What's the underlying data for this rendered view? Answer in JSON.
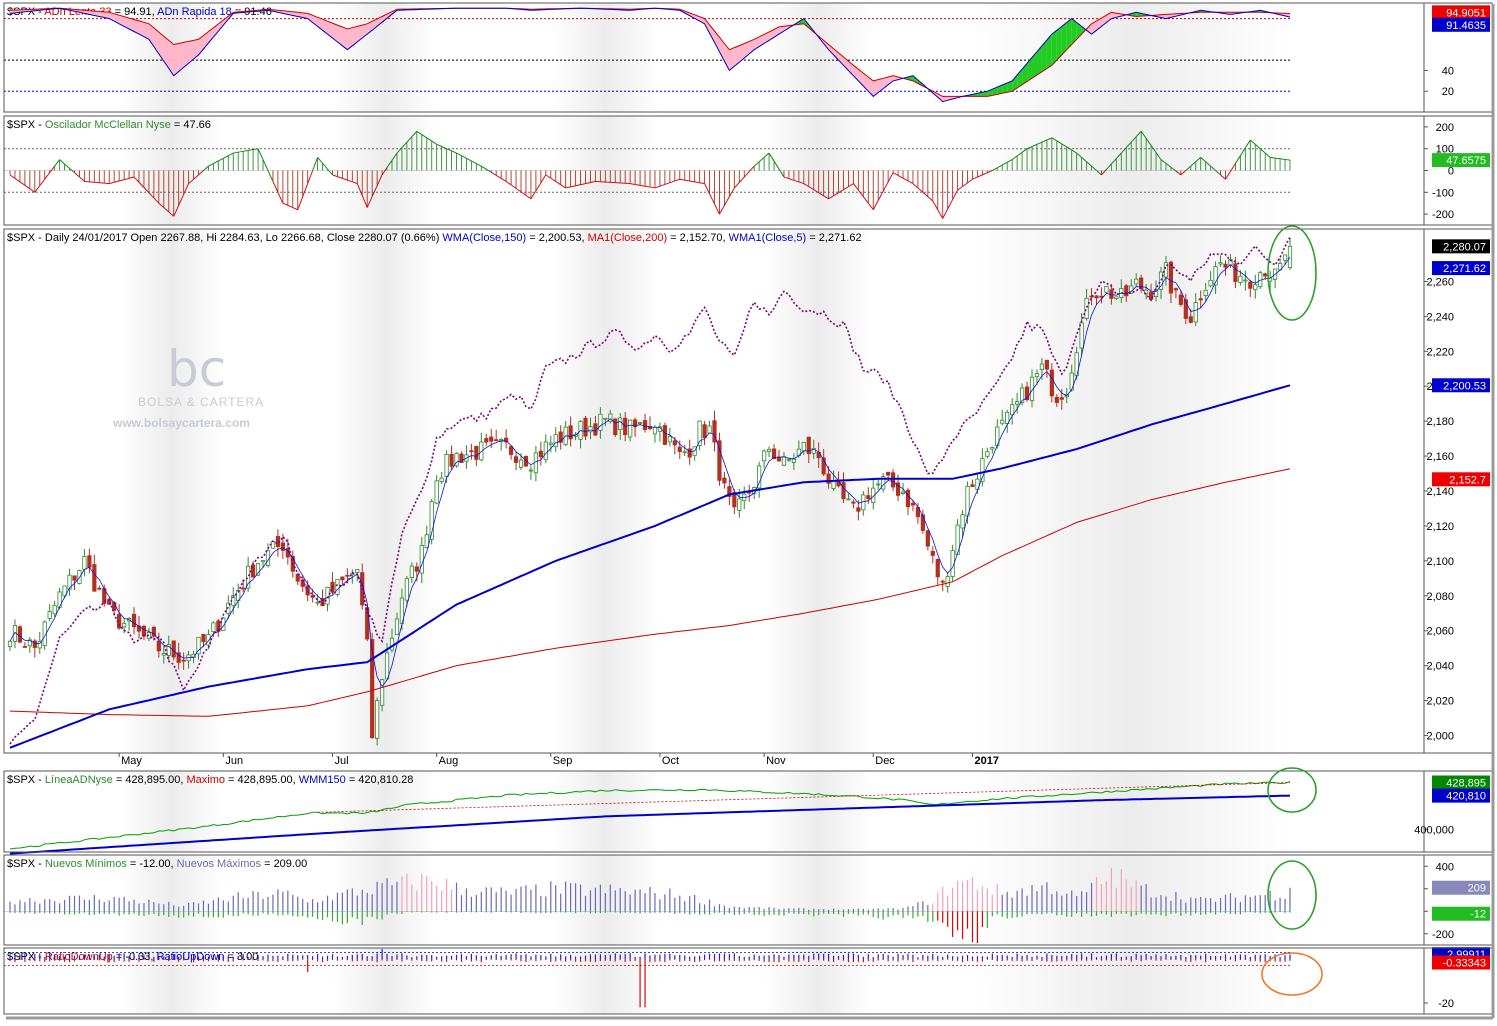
{
  "watermark": {
    "logo": "bc",
    "brand": "BOLSA & CARTERA",
    "url": "www.bolsaycartera.com"
  },
  "colors": {
    "up": "#2e8b2e",
    "down": "#b3301f",
    "blue": "#0000cc",
    "red": "#cc0000",
    "purple": "#800080",
    "green": "#00a000",
    "annotation_green": "#2ca02c",
    "annotation_orange": "#f07820"
  },
  "chart_data": [
    {
      "id": "adn",
      "type": "area",
      "title_parts": [
        "$SPX - ",
        "ADn Lenta 33",
        " = 94.91, ",
        "ADn Rapida 18",
        " = 91.46"
      ],
      "series": [
        {
          "name": "ADn Lenta 33",
          "last": 94.91
        },
        {
          "name": "ADn Rapida 18",
          "last": 91.46
        }
      ],
      "ticks": [
        "40",
        "20"
      ],
      "level_lines": [
        90,
        50,
        20
      ],
      "ylim": [
        0,
        105
      ],
      "labels": {
        "lenta": "94.9051",
        "rapida": "91.4635"
      }
    },
    {
      "id": "mcclellan",
      "type": "bar",
      "title_parts": [
        "$SPX - ",
        "Oscilador McClellan Nyse",
        " = 47.66"
      ],
      "series": [
        {
          "name": "Oscilador McClellan Nyse",
          "last": 47.66
        }
      ],
      "ticks": [
        "200",
        "100",
        "0",
        "-100",
        "-200"
      ],
      "level_lines": [
        100,
        -100
      ],
      "ylim": [
        -250,
        250
      ],
      "labels": {
        "last": "47.6575"
      }
    },
    {
      "id": "price",
      "type": "candlestick",
      "title_parts": [
        "$SPX - Daily 24/01/2017 Open 2267.88, Hi 2284.63, Lo 2266.68, Close 2280.07 (0.66%) ",
        "WMA(Close,150)",
        " = 2,200.53, ",
        "MA1(Close,200)",
        " = 2,152.70, ",
        "WMA1(Close,5)",
        " = 2,271.62"
      ],
      "last": {
        "date": "24/01/2017",
        "open": 2267.88,
        "high": 2284.63,
        "low": 2266.68,
        "close": 2280.07,
        "change_pct": 0.66
      },
      "series": [
        {
          "name": "WMA(Close,150)",
          "last": 2200.53
        },
        {
          "name": "MA1(Close,200)",
          "last": 2152.7
        },
        {
          "name": "WMA1(Close,5)",
          "last": 2271.62
        }
      ],
      "ticks": [
        "2,260",
        "2,240",
        "2,220",
        "2,200",
        "2,180",
        "2,160",
        "2,140",
        "2,120",
        "2,100",
        "2,080",
        "2,060",
        "2,040",
        "2,020",
        "2,000"
      ],
      "ylim": [
        1990,
        2290
      ],
      "x_months": [
        "May",
        "Jun",
        "Jul",
        "Aug",
        "Sep",
        "Oct",
        "Nov",
        "Dec",
        "2017"
      ],
      "labels": {
        "close": "2,280.07",
        "wma5": "2,271.62",
        "wma150": "2,200.53",
        "ma200": "2,152.7"
      },
      "keypoints_close": [
        [
          0,
          2060
        ],
        [
          5,
          2050
        ],
        [
          10,
          2080
        ],
        [
          15,
          2100
        ],
        [
          20,
          2070
        ],
        [
          25,
          2060
        ],
        [
          30,
          2050
        ],
        [
          35,
          2045
        ],
        [
          40,
          2055
        ],
        [
          45,
          2080
        ],
        [
          50,
          2100
        ],
        [
          55,
          2110
        ],
        [
          58,
          2090
        ],
        [
          62,
          2075
        ],
        [
          66,
          2085
        ],
        [
          70,
          2095
        ],
        [
          72,
          2050
        ],
        [
          73,
          2000
        ],
        [
          75,
          2035
        ],
        [
          79,
          2080
        ],
        [
          83,
          2105
        ],
        [
          86,
          2150
        ],
        [
          90,
          2160
        ],
        [
          95,
          2163
        ],
        [
          100,
          2165
        ],
        [
          105,
          2158
        ],
        [
          110,
          2170
        ],
        [
          115,
          2175
        ],
        [
          120,
          2180
        ],
        [
          125,
          2175
        ],
        [
          130,
          2180
        ],
        [
          135,
          2160
        ],
        [
          137,
          2165
        ],
        [
          139,
          2175
        ],
        [
          141,
          2175
        ],
        [
          144,
          2140
        ],
        [
          146,
          2125
        ],
        [
          150,
          2145
        ],
        [
          153,
          2165
        ],
        [
          156,
          2155
        ],
        [
          160,
          2165
        ],
        [
          163,
          2160
        ],
        [
          166,
          2140
        ],
        [
          170,
          2128
        ],
        [
          173,
          2140
        ],
        [
          176,
          2145
        ],
        [
          180,
          2140
        ],
        [
          183,
          2125
        ],
        [
          186,
          2100
        ],
        [
          188,
          2085
        ],
        [
          191,
          2120
        ],
        [
          193,
          2140
        ],
        [
          195,
          2150
        ],
        [
          198,
          2170
        ],
        [
          201,
          2180
        ],
        [
          205,
          2198
        ],
        [
          208,
          2210
        ],
        [
          211,
          2195
        ],
        [
          213,
          2200
        ],
        [
          215,
          2225
        ],
        [
          218,
          2255
        ],
        [
          221,
          2255
        ],
        [
          224,
          2250
        ],
        [
          227,
          2258
        ],
        [
          230,
          2255
        ],
        [
          233,
          2265
        ],
        [
          235,
          2250
        ],
        [
          238,
          2240
        ],
        [
          241,
          2260
        ],
        [
          244,
          2270
        ],
        [
          247,
          2265
        ],
        [
          250,
          2262
        ],
        [
          253,
          2268
        ],
        [
          255,
          2262
        ],
        [
          257,
          2272
        ],
        [
          258,
          2280
        ]
      ],
      "keypoints_wma150": [
        [
          0,
          1993
        ],
        [
          20,
          2015
        ],
        [
          40,
          2028
        ],
        [
          60,
          2038
        ],
        [
          72,
          2042
        ],
        [
          90,
          2075
        ],
        [
          110,
          2100
        ],
        [
          130,
          2120
        ],
        [
          145,
          2138
        ],
        [
          160,
          2145
        ],
        [
          175,
          2147
        ],
        [
          190,
          2147
        ],
        [
          200,
          2153
        ],
        [
          215,
          2164
        ],
        [
          230,
          2178
        ],
        [
          245,
          2190
        ],
        [
          258,
          2200.53
        ]
      ],
      "keypoints_ma200": [
        [
          0,
          2014
        ],
        [
          20,
          2012
        ],
        [
          40,
          2011
        ],
        [
          60,
          2017
        ],
        [
          72,
          2025
        ],
        [
          90,
          2040
        ],
        [
          110,
          2050
        ],
        [
          130,
          2058
        ],
        [
          145,
          2063
        ],
        [
          160,
          2070
        ],
        [
          175,
          2078
        ],
        [
          190,
          2088
        ],
        [
          200,
          2103
        ],
        [
          215,
          2122
        ],
        [
          230,
          2135
        ],
        [
          245,
          2145
        ],
        [
          258,
          2152.7
        ]
      ],
      "keypoints_purple": [
        [
          0,
          1993
        ],
        [
          5,
          2010
        ],
        [
          10,
          2055
        ],
        [
          15,
          2070
        ],
        [
          20,
          2075
        ],
        [
          25,
          2052
        ],
        [
          30,
          2058
        ],
        [
          35,
          2025
        ],
        [
          40,
          2050
        ],
        [
          45,
          2080
        ],
        [
          50,
          2100
        ],
        [
          55,
          2115
        ],
        [
          58,
          2095
        ],
        [
          62,
          2075
        ],
        [
          66,
          2085
        ],
        [
          70,
          2095
        ],
        [
          72,
          2070
        ],
        [
          75,
          2055
        ],
        [
          79,
          2115
        ],
        [
          83,
          2140
        ],
        [
          86,
          2170
        ],
        [
          90,
          2180
        ],
        [
          95,
          2182
        ],
        [
          100,
          2192
        ],
        [
          102,
          2195
        ],
        [
          105,
          2185
        ],
        [
          108,
          2210
        ],
        [
          112,
          2215
        ],
        [
          118,
          2225
        ],
        [
          122,
          2230
        ],
        [
          127,
          2222
        ],
        [
          130,
          2230
        ],
        [
          133,
          2222
        ],
        [
          137,
          2230
        ],
        [
          140,
          2245
        ],
        [
          143,
          2225
        ],
        [
          146,
          2215
        ],
        [
          150,
          2250
        ],
        [
          153,
          2240
        ],
        [
          156,
          2255
        ],
        [
          160,
          2245
        ],
        [
          164,
          2242
        ],
        [
          168,
          2235
        ],
        [
          172,
          2210
        ],
        [
          176,
          2205
        ],
        [
          180,
          2185
        ],
        [
          184,
          2155
        ],
        [
          186,
          2148
        ],
        [
          190,
          2170
        ],
        [
          195,
          2185
        ],
        [
          200,
          2205
        ],
        [
          205,
          2235
        ],
        [
          208,
          2232
        ],
        [
          212,
          2205
        ],
        [
          216,
          2240
        ],
        [
          220,
          2258
        ],
        [
          224,
          2253
        ],
        [
          228,
          2255
        ],
        [
          230,
          2250
        ],
        [
          233,
          2268
        ],
        [
          235,
          2268
        ],
        [
          238,
          2260
        ],
        [
          242,
          2275
        ],
        [
          245,
          2275
        ],
        [
          248,
          2272
        ],
        [
          251,
          2278
        ],
        [
          255,
          2270
        ],
        [
          258,
          2288
        ]
      ]
    },
    {
      "id": "linea_ad",
      "type": "line",
      "title_parts": [
        "$SPX - ",
        "LíneaADNyse",
        " = 428,895.00, ",
        "Maximo",
        " = 428,895.00, ",
        "WMM150",
        " = 420,810.28"
      ],
      "series": [
        {
          "name": "LíneaADNyse",
          "last": 428895.0
        },
        {
          "name": "Maximo",
          "last": 428895.0
        },
        {
          "name": "WMM150",
          "last": 420810.28
        }
      ],
      "ticks": [
        "400,000"
      ],
      "ylim": [
        386000,
        436000
      ],
      "labels": {
        "linea": "428,895",
        "wmm": "420,810"
      }
    },
    {
      "id": "nuevos",
      "type": "bar",
      "title_parts": [
        "$SPX - ",
        "Nuevos Mínimos",
        " = -12.00, ",
        "Nuevos Máximos",
        " = 209.00"
      ],
      "series": [
        {
          "name": "Nuevos Mínimos",
          "last": -12.0
        },
        {
          "name": "Nuevos Máximos",
          "last": 209.0
        }
      ],
      "ticks": [
        "400",
        "200",
        "0",
        "-200"
      ],
      "ylim": [
        -300,
        500
      ],
      "labels": {
        "max": "209",
        "min": "-12"
      }
    },
    {
      "id": "ratio",
      "type": "bar",
      "title_parts": [
        "$SPX - ",
        "RatioDownUp",
        " = -0.33, ",
        "RatioUpDown",
        " = 3.00"
      ],
      "series": [
        {
          "name": "RatioDownUp",
          "last": -0.33
        },
        {
          "name": "RatioUpDown",
          "last": 3.0
        }
      ],
      "ticks": [
        "-20"
      ],
      "ylim": [
        -25,
        5
      ],
      "labels": {
        "up": "2.99911",
        "down": "-0.33343"
      }
    }
  ]
}
